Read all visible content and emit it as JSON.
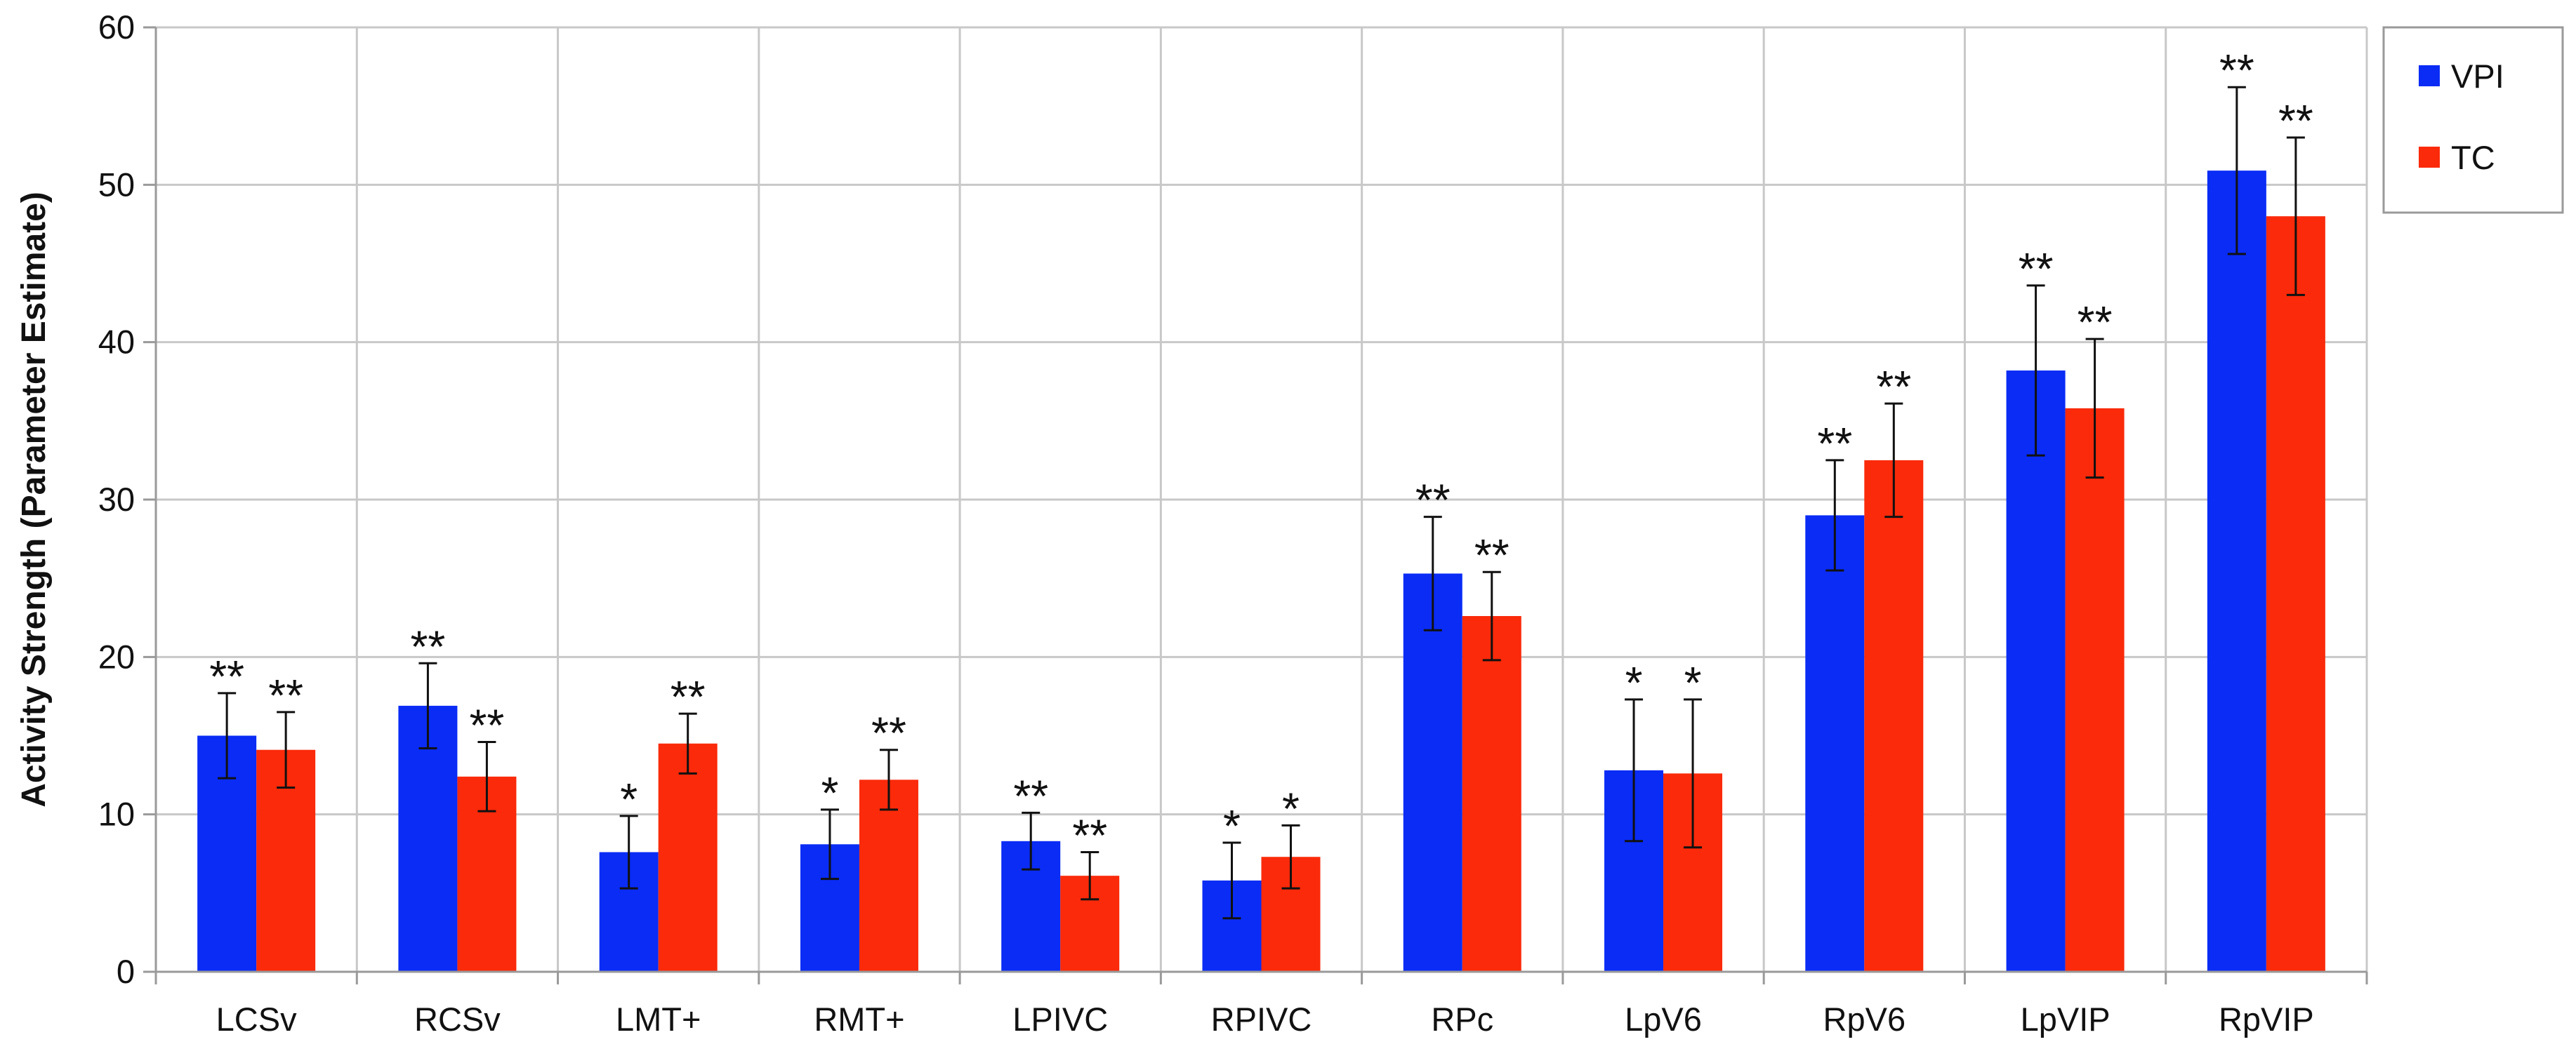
{
  "chart_data": {
    "type": "bar",
    "title": "",
    "xlabel": "",
    "ylabel": "Activity Strength (Parameter Estimate)",
    "ylim": [
      0,
      60
    ],
    "yticks": [
      0,
      10,
      20,
      30,
      40,
      50,
      60
    ],
    "grid": true,
    "legend_position": "top-right",
    "categories": [
      "LCSv",
      "RCSv",
      "LMT+",
      "RMT+",
      "LPIVC",
      "RPIVC",
      "RPc",
      "LpV6",
      "RpV6",
      "LpVIP",
      "RpVIP"
    ],
    "series": [
      {
        "name": "VPI",
        "color": "#0a2cf5",
        "values": [
          15.0,
          16.9,
          7.6,
          8.1,
          8.3,
          5.8,
          25.3,
          12.8,
          29.0,
          38.2,
          50.9
        ],
        "errors": [
          2.7,
          2.7,
          2.3,
          2.2,
          1.8,
          2.4,
          3.6,
          4.5,
          3.5,
          5.4,
          5.3
        ],
        "significance": [
          "**",
          "**",
          "*",
          "*",
          "**",
          "*",
          "**",
          "*",
          "**",
          "**",
          "**"
        ]
      },
      {
        "name": "TC",
        "color": "#fa2a0a",
        "values": [
          14.1,
          12.4,
          14.5,
          12.2,
          6.1,
          7.3,
          22.6,
          12.6,
          32.5,
          35.8,
          48.0
        ],
        "errors": [
          2.4,
          2.2,
          1.9,
          1.9,
          1.5,
          2.0,
          2.8,
          4.7,
          3.6,
          4.4,
          5.0
        ],
        "significance": [
          "**",
          "**",
          "**",
          "**",
          "**",
          "*",
          "**",
          "*",
          "**",
          "**",
          "**"
        ]
      }
    ]
  }
}
